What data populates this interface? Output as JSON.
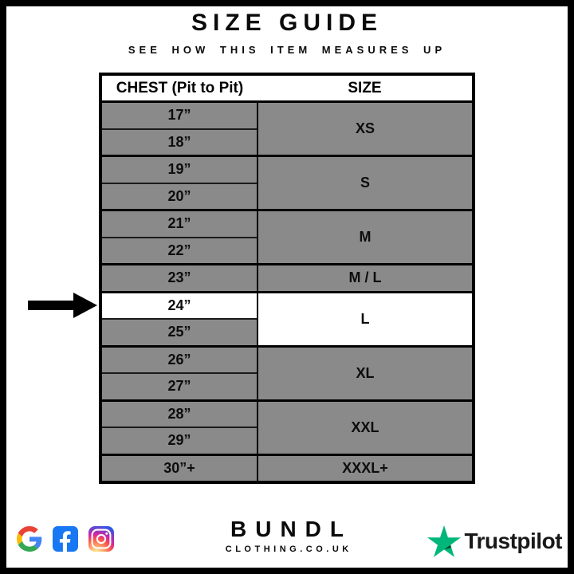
{
  "header": {
    "title": "SIZE GUIDE",
    "subtitle": "SEE HOW THIS ITEM MEASURES UP"
  },
  "table": {
    "columns": [
      "CHEST (Pit to Pit)",
      "SIZE"
    ],
    "groups": [
      {
        "size": "XS",
        "chest": [
          "17”",
          "18”"
        ],
        "size_highlighted": false,
        "chest_highlighted": []
      },
      {
        "size": "S",
        "chest": [
          "19”",
          "20”"
        ],
        "size_highlighted": false,
        "chest_highlighted": []
      },
      {
        "size": "M",
        "chest": [
          "21”",
          "22”"
        ],
        "size_highlighted": false,
        "chest_highlighted": []
      },
      {
        "size": "M / L",
        "chest": [
          "23”"
        ],
        "size_highlighted": false,
        "chest_highlighted": []
      },
      {
        "size": "L",
        "chest": [
          "24”",
          "25”"
        ],
        "size_highlighted": true,
        "chest_highlighted": [
          "24”"
        ]
      },
      {
        "size": "XL",
        "chest": [
          "26”",
          "27”"
        ],
        "size_highlighted": false,
        "chest_highlighted": []
      },
      {
        "size": "XXL",
        "chest": [
          "28”",
          "29”"
        ],
        "size_highlighted": false,
        "chest_highlighted": []
      },
      {
        "size": "XXXL+",
        "chest": [
          "30”+"
        ],
        "size_highlighted": false,
        "chest_highlighted": []
      }
    ]
  },
  "annotation": {
    "arrow_points_to_chest": "24”",
    "arrow_points_to_size": "L"
  },
  "footer": {
    "brand": {
      "name": "BUNDL",
      "domain": "CLOTHING.CO.UK"
    },
    "social_icons": [
      "google-icon",
      "facebook-icon",
      "instagram-icon"
    ],
    "trustpilot": {
      "label": "Trustpilot"
    }
  },
  "colors": {
    "row_gray": "#8a8a8a",
    "highlight_row": "#ffffff",
    "border": "#000000",
    "facebook_blue": "#1877F2",
    "trustpilot_green": "#00B67A",
    "trustpilot_dark_green": "#005128"
  }
}
